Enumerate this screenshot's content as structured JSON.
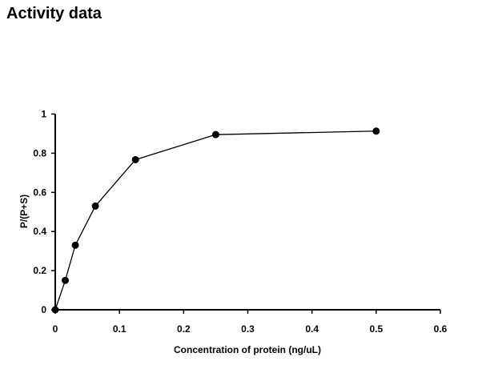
{
  "chart_data": {
    "type": "line",
    "title": "Activity data",
    "xlabel": "Concentration of protein (ng/uL)",
    "ylabel": "P/(P+S)",
    "xlim": [
      0,
      0.6
    ],
    "ylim": [
      0,
      1
    ],
    "xticks": [
      "0",
      "0.1",
      "0.2",
      "0.3",
      "0.4",
      "0.5",
      "0.6"
    ],
    "yticks": [
      "0",
      "0.2",
      "0.4",
      "0.6",
      "0.8",
      "1"
    ],
    "grid": false,
    "legend": "none",
    "series": [
      {
        "x": [
          0,
          0.0156,
          0.03125,
          0.0625,
          0.125,
          0.25,
          0.5
        ],
        "y": [
          0,
          0.15,
          0.33,
          0.53,
          0.767,
          0.895,
          0.913
        ],
        "color": "#000000",
        "marker": "circle"
      }
    ]
  }
}
